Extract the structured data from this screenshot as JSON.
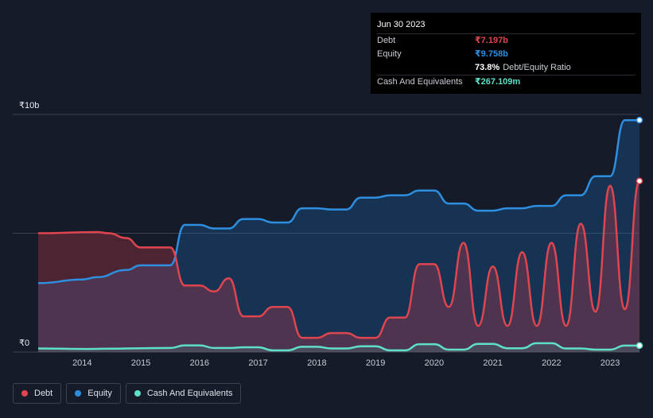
{
  "chart_data": {
    "type": "area",
    "title": "",
    "xlabel": "",
    "ylabel": "",
    "y_unit": "₹ billions",
    "ylim": [
      0,
      10
    ],
    "xlim": [
      2013.25,
      2023.5
    ],
    "y_tick_labels": [
      {
        "value": 10,
        "label": "₹10b"
      },
      {
        "value": 0,
        "label": "₹0"
      }
    ],
    "gridlines_at": [
      10,
      5
    ],
    "x_ticks": [
      {
        "value": 2014,
        "label": "2014"
      },
      {
        "value": 2015,
        "label": "2015"
      },
      {
        "value": 2016,
        "label": "2016"
      },
      {
        "value": 2017,
        "label": "2017"
      },
      {
        "value": 2018,
        "label": "2018"
      },
      {
        "value": 2019,
        "label": "2019"
      },
      {
        "value": 2020,
        "label": "2020"
      },
      {
        "value": 2021,
        "label": "2021"
      },
      {
        "value": 2022,
        "label": "2022"
      },
      {
        "value": 2023,
        "label": "2023"
      }
    ],
    "series": [
      {
        "name": "Debt",
        "color": "#e0454f",
        "x": [
          2013.25,
          2014.25,
          2014.45,
          2014.75,
          2015.0,
          2015.5,
          2015.75,
          2016.0,
          2016.25,
          2016.5,
          2016.75,
          2017.0,
          2017.25,
          2017.5,
          2017.75,
          2018.0,
          2018.25,
          2018.5,
          2018.75,
          2019.0,
          2019.25,
          2019.5,
          2019.75,
          2020.0,
          2020.25,
          2020.5,
          2020.75,
          2021.0,
          2021.25,
          2021.5,
          2021.75,
          2022.0,
          2022.25,
          2022.5,
          2022.75,
          2023.0,
          2023.25,
          2023.5
        ],
        "y": [
          5.0,
          5.05,
          5.0,
          4.8,
          4.4,
          4.4,
          2.8,
          2.8,
          2.55,
          3.1,
          1.5,
          1.5,
          1.9,
          1.9,
          0.6,
          0.6,
          0.8,
          0.8,
          0.6,
          0.6,
          1.45,
          1.45,
          3.7,
          3.7,
          1.9,
          4.6,
          1.1,
          3.6,
          1.1,
          4.2,
          1.1,
          4.6,
          1.1,
          5.4,
          1.7,
          7.0,
          1.8,
          7.2
        ]
      },
      {
        "name": "Equity",
        "color": "#2e8fe0",
        "x": [
          2013.25,
          2014.0,
          2014.25,
          2014.75,
          2015.0,
          2015.5,
          2015.75,
          2016.0,
          2016.25,
          2016.5,
          2016.75,
          2017.0,
          2017.25,
          2017.5,
          2017.75,
          2018.0,
          2018.25,
          2018.5,
          2018.75,
          2019.0,
          2019.25,
          2019.5,
          2019.75,
          2020.0,
          2020.25,
          2020.5,
          2020.75,
          2021.0,
          2021.25,
          2021.5,
          2021.75,
          2022.0,
          2022.25,
          2022.5,
          2022.75,
          2023.0,
          2023.25,
          2023.5
        ],
        "y": [
          2.9,
          3.05,
          3.15,
          3.45,
          3.65,
          3.65,
          5.35,
          5.35,
          5.2,
          5.2,
          5.6,
          5.6,
          5.45,
          5.45,
          6.05,
          6.05,
          6.0,
          6.0,
          6.5,
          6.5,
          6.6,
          6.6,
          6.8,
          6.8,
          6.25,
          6.25,
          5.95,
          5.95,
          6.05,
          6.05,
          6.15,
          6.15,
          6.6,
          6.6,
          7.4,
          7.4,
          9.76,
          9.76
        ]
      },
      {
        "name": "Cash And Equivalents",
        "color": "#5ee0c8",
        "x": [
          2013.25,
          2014.0,
          2014.5,
          2015.0,
          2015.5,
          2015.75,
          2016.0,
          2016.25,
          2016.5,
          2016.75,
          2017.0,
          2017.25,
          2017.5,
          2017.75,
          2018.0,
          2018.25,
          2018.5,
          2018.75,
          2019.0,
          2019.25,
          2019.5,
          2019.75,
          2020.0,
          2020.25,
          2020.5,
          2020.75,
          2021.0,
          2021.25,
          2021.5,
          2021.75,
          2022.0,
          2022.25,
          2022.5,
          2022.75,
          2023.0,
          2023.25,
          2023.5
        ],
        "y": [
          0.15,
          0.13,
          0.14,
          0.16,
          0.17,
          0.28,
          0.28,
          0.17,
          0.17,
          0.2,
          0.2,
          0.07,
          0.07,
          0.22,
          0.22,
          0.15,
          0.15,
          0.24,
          0.24,
          0.07,
          0.07,
          0.33,
          0.33,
          0.1,
          0.1,
          0.34,
          0.34,
          0.16,
          0.16,
          0.37,
          0.37,
          0.15,
          0.15,
          0.1,
          0.1,
          0.27,
          0.27
        ]
      }
    ],
    "legend": [
      "Debt",
      "Equity",
      "Cash And Equivalents"
    ],
    "legend_position": "bottom-left"
  },
  "tooltip": {
    "date": "Jun 30 2023",
    "rows": [
      {
        "label": "Debt",
        "value": "₹7.197b",
        "color": "#e0454f"
      },
      {
        "label": "Equity",
        "value": "₹9.758b",
        "color": "#2e8fe0"
      },
      {
        "label": "",
        "value": "73.8%",
        "suffix": "Debt/Equity Ratio",
        "color": "#ffffff"
      },
      {
        "label": "Cash And Equivalents",
        "value": "₹267.109m",
        "color": "#5ee0c8"
      }
    ]
  },
  "legend": [
    {
      "label": "Debt",
      "color": "#e0454f"
    },
    {
      "label": "Equity",
      "color": "#2e8fe0"
    },
    {
      "label": "Cash And Equivalents",
      "color": "#5ee0c8"
    }
  ]
}
